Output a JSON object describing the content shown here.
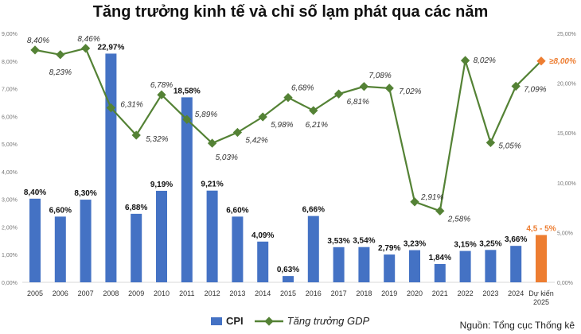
{
  "chart_data": {
    "type": "bar+line",
    "title": "Tăng trưởng kinh tế và chỉ số lạm phát qua các năm",
    "categories": [
      "2005",
      "2006",
      "2007",
      "2008",
      "2009",
      "2010",
      "2011",
      "2012",
      "2013",
      "2014",
      "2015",
      "2016",
      "2017",
      "2018",
      "2019",
      "2020",
      "2021",
      "2022",
      "2023",
      "2024",
      "Dự kiến 2025"
    ],
    "series": [
      {
        "name": "CPI",
        "type": "bar",
        "axis": "right",
        "color": "#4472c4",
        "highlight_color": "#ed7d31",
        "values": [
          8.4,
          6.6,
          8.3,
          22.97,
          6.88,
          9.19,
          18.58,
          9.21,
          6.6,
          4.09,
          0.63,
          6.66,
          3.53,
          3.54,
          2.79,
          3.23,
          1.84,
          3.15,
          3.25,
          3.66,
          4.75
        ],
        "labels": [
          "8,40%",
          "6,60%",
          "8,30%",
          "22,97%",
          "6,88%",
          "9,19%",
          "18,58%",
          "9,21%",
          "6,60%",
          "4,09%",
          "0,63%",
          "6,66%",
          "3,53%",
          "3,54%",
          "2,79%",
          "3,23%",
          "1,84%",
          "3,15%",
          "3,25%",
          "3,66%",
          "4,5 - 5%"
        ]
      },
      {
        "name": "Tăng trưởng GDP",
        "type": "line",
        "axis": "left",
        "color": "#548235",
        "highlight_color": "#ed7d31",
        "values": [
          8.4,
          8.23,
          8.46,
          6.31,
          5.32,
          6.78,
          5.89,
          5.03,
          5.42,
          5.98,
          6.68,
          6.21,
          6.81,
          7.08,
          7.02,
          2.91,
          2.58,
          8.02,
          5.05,
          7.09,
          8.0
        ],
        "labels": [
          "8,40%",
          "8,23%",
          "8,46%",
          "6,31%",
          "5,32%",
          "6,78%",
          "5,89%",
          "5,03%",
          "5,42%",
          "5,98%",
          "6,68%",
          "6,21%",
          "6,81%",
          "7,08%",
          "7,02%",
          "2,91%",
          "2,58%",
          "8,02%",
          "5,05%",
          "7,09%",
          "≥8,00%"
        ]
      }
    ],
    "left_axis": {
      "ylim": [
        0,
        9
      ],
      "ticks": [
        "0,00%",
        "1,00%",
        "2,00%",
        "3,00%",
        "4,00%",
        "5,00%",
        "6,00%",
        "7,00%",
        "8,00%",
        "9,00%"
      ]
    },
    "right_axis": {
      "ylim": [
        0,
        25
      ],
      "ticks": [
        "0,00%",
        "5,00%",
        "10,00%",
        "15,00%",
        "20,00%",
        "25,00%"
      ]
    },
    "legend": {
      "placement": "bottom",
      "items": [
        "CPI",
        "Tăng trưởng GDP"
      ]
    },
    "source": "Nguồn: Tổng cục Thống kê"
  }
}
